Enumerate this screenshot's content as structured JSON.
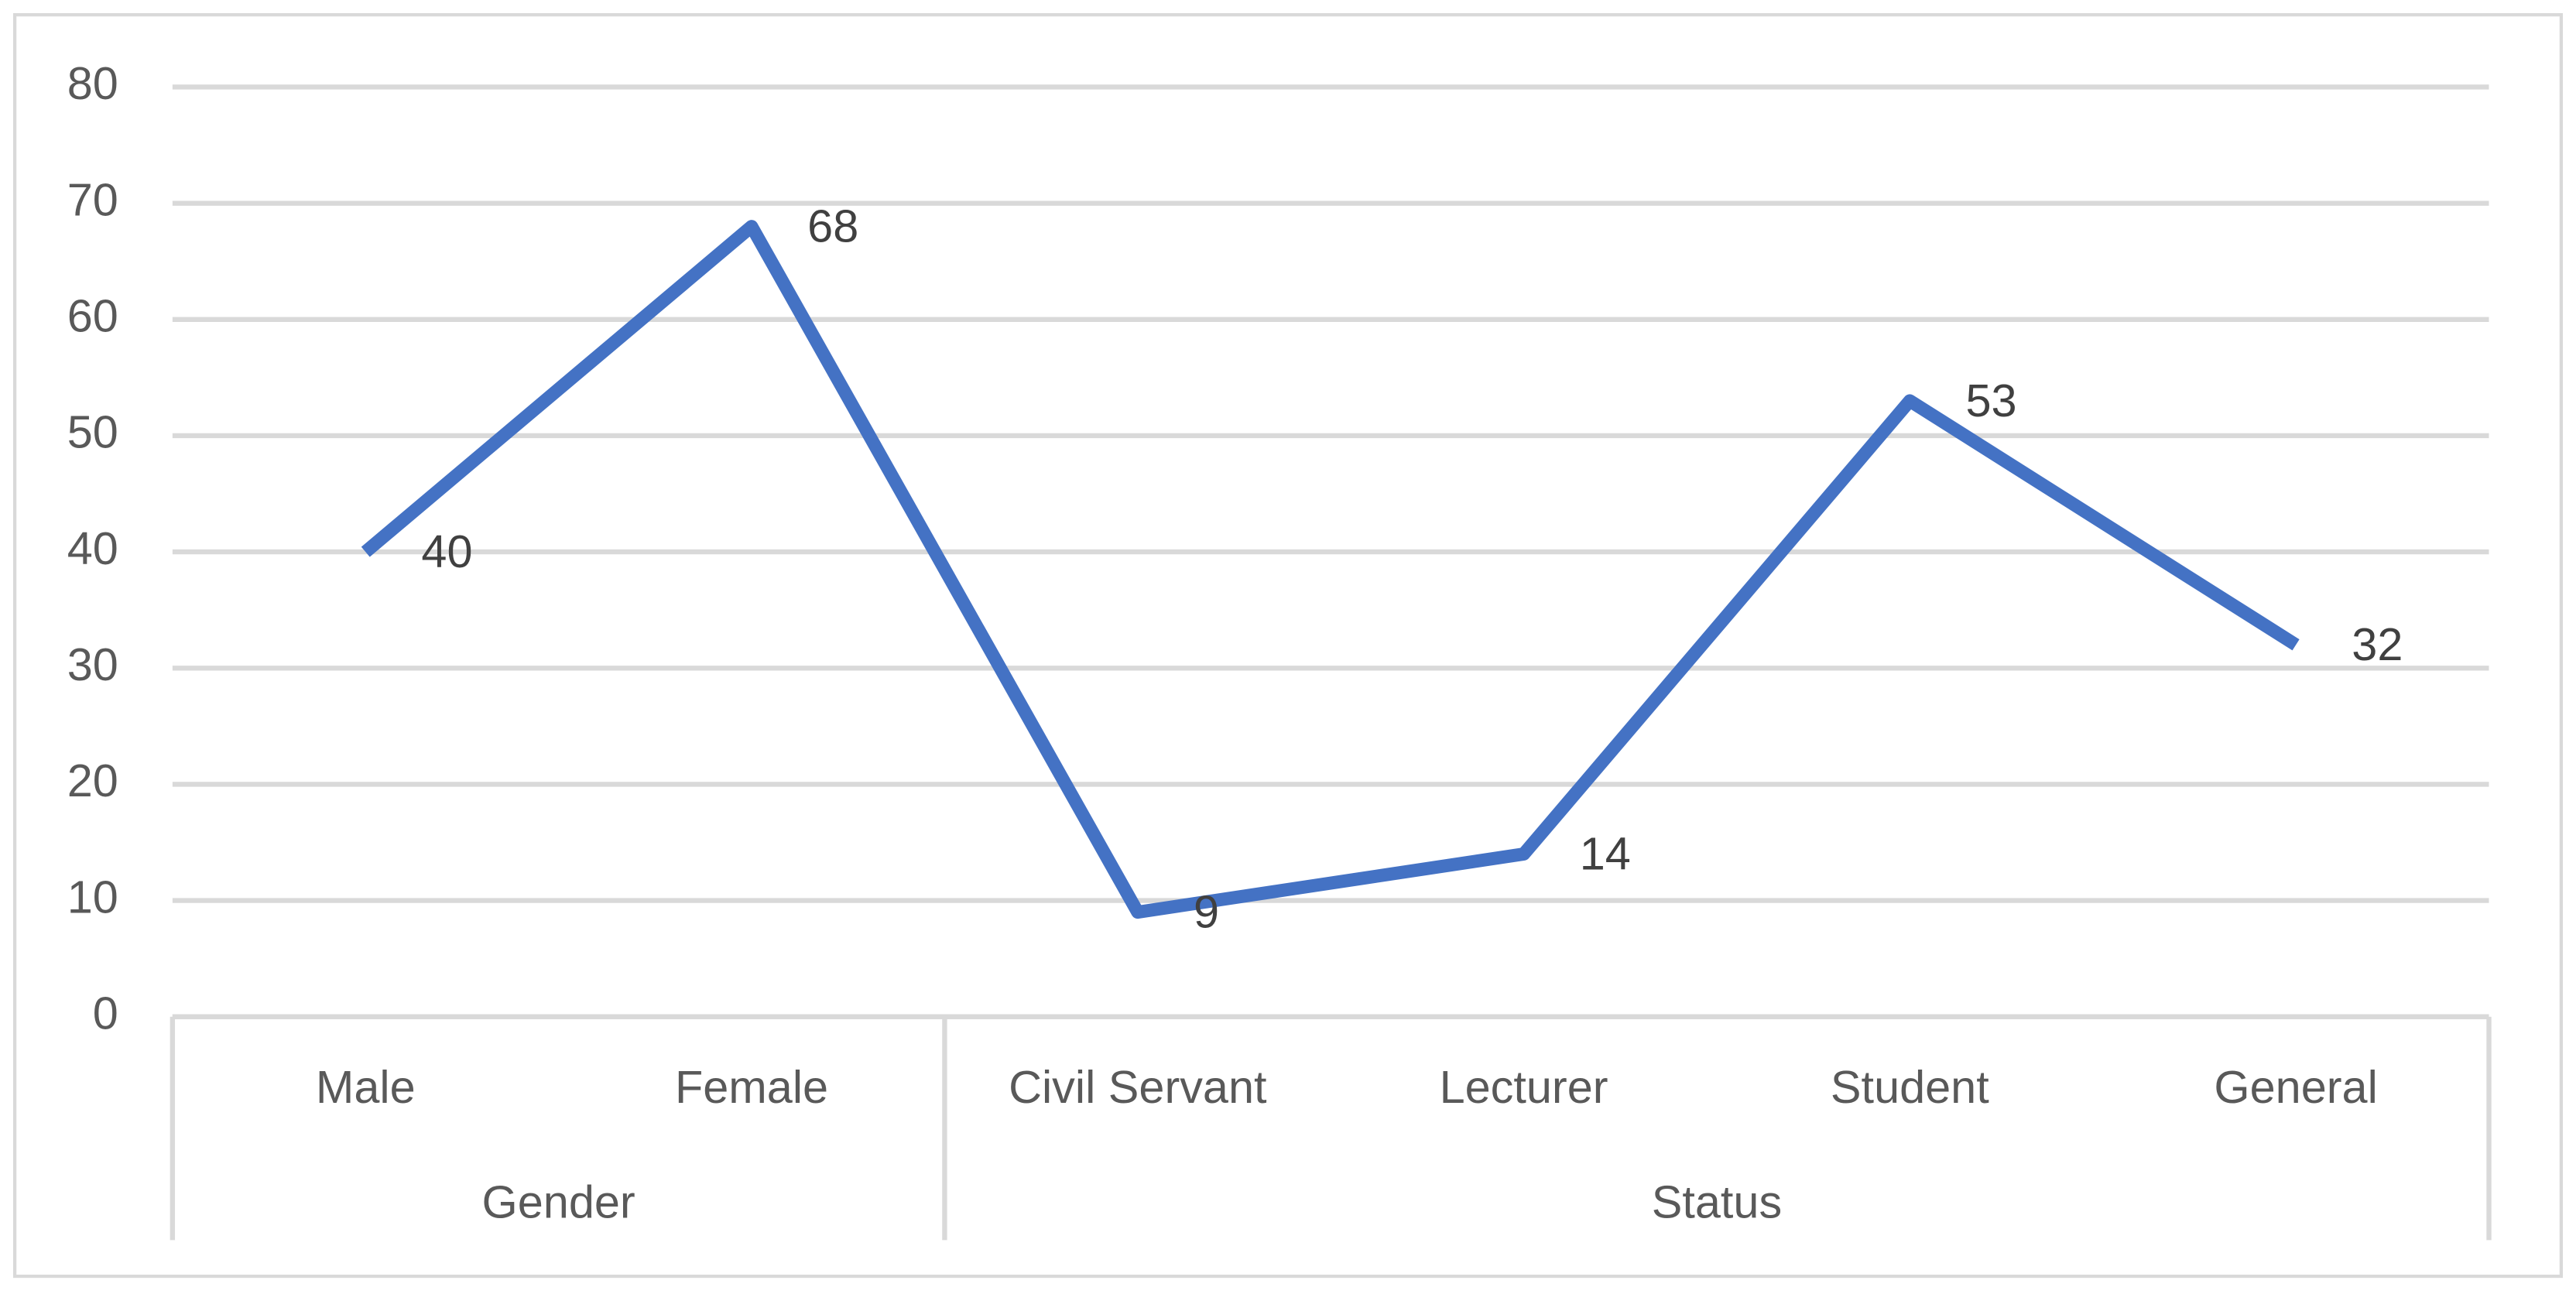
{
  "chart_data": {
    "type": "line",
    "groups": [
      {
        "name": "Gender",
        "categories": [
          "Male",
          "Female"
        ]
      },
      {
        "name": "Status",
        "categories": [
          "Civil Servant",
          "Lecturer",
          "Student",
          "General"
        ]
      }
    ],
    "values": [
      40,
      68,
      9,
      14,
      53,
      32
    ],
    "color": "#4472c4",
    "ylim": [
      0,
      80
    ],
    "yticks": [
      0,
      10,
      20,
      30,
      40,
      50,
      60,
      70,
      80
    ],
    "grid": true
  }
}
